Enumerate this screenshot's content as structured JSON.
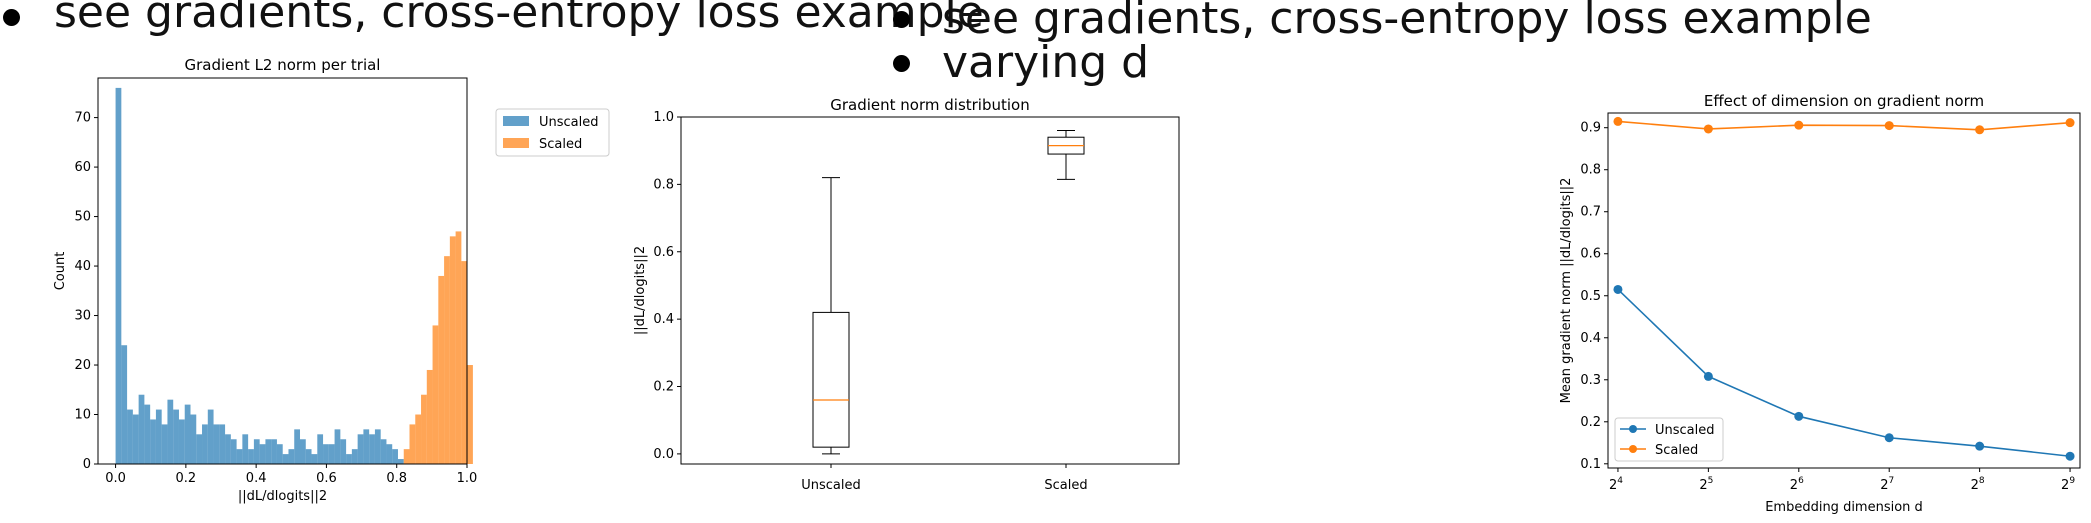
{
  "slide": {
    "left_bullets": [
      "see gradients, cross-entropy loss example"
    ],
    "right_bullets": [
      "see gradients, cross-entropy loss example",
      "varying d"
    ]
  },
  "colors": {
    "unscaled": "#1f77b4",
    "scaled": "#ff7f0e"
  },
  "chart_data": [
    {
      "type": "bar",
      "title": "Gradient L2 norm per trial",
      "xlabel": "||dL/dlogits||2",
      "ylabel": "Count",
      "xlim": [
        -0.05,
        1.0
      ],
      "ylim": [
        0,
        78
      ],
      "xticks": [
        "0.0",
        "0.2",
        "0.4",
        "0.6",
        "0.8",
        "1.0"
      ],
      "yticks": [
        "0",
        "10",
        "20",
        "30",
        "40",
        "50",
        "60",
        "70"
      ],
      "legend": "top-right",
      "bin_width": 0.0164,
      "series": [
        {
          "name": "Unscaled",
          "bin_start": 0.0,
          "values": [
            76,
            24,
            11,
            10,
            14,
            12,
            9,
            11,
            8,
            13,
            11,
            9,
            12,
            10,
            6,
            8,
            11,
            8,
            8,
            6,
            5,
            3,
            6,
            3,
            5,
            4,
            5,
            5,
            4,
            2,
            3,
            7,
            5,
            3,
            2,
            6,
            4,
            4,
            7,
            5,
            2,
            3,
            6,
            7,
            6,
            7,
            5,
            4,
            3,
            1
          ]
        },
        {
          "name": "Scaled",
          "bin_start": 0.82,
          "values": [
            3,
            8,
            10,
            14,
            19,
            28,
            38,
            42,
            46,
            47,
            41,
            20
          ]
        }
      ]
    },
    {
      "type": "box",
      "title": "Gradient norm distribution",
      "xlabel": "",
      "ylabel": "||dL/dlogits||2",
      "categories": [
        "Unscaled",
        "Scaled"
      ],
      "ylim": [
        -0.03,
        1.0
      ],
      "yticks": [
        "0.0",
        "0.2",
        "0.4",
        "0.6",
        "0.8",
        "1.0"
      ],
      "boxes": [
        {
          "name": "Unscaled",
          "whisker_low": 0.0,
          "q1": 0.02,
          "median": 0.16,
          "q3": 0.42,
          "whisker_high": 0.82
        },
        {
          "name": "Scaled",
          "whisker_low": 0.815,
          "q1": 0.89,
          "median": 0.915,
          "q3": 0.94,
          "whisker_high": 0.96
        }
      ]
    },
    {
      "type": "line",
      "title": "Effect of dimension on gradient norm",
      "xlabel": "Embedding dimension d",
      "ylabel": "Mean gradient norm ||dL/dlogits||2",
      "x": [
        16,
        32,
        64,
        128,
        256,
        512
      ],
      "xticks": [
        {
          "base": "2",
          "exp": "4"
        },
        {
          "base": "2",
          "exp": "5"
        },
        {
          "base": "2",
          "exp": "6"
        },
        {
          "base": "2",
          "exp": "7"
        },
        {
          "base": "2",
          "exp": "8"
        },
        {
          "base": "2",
          "exp": "9"
        }
      ],
      "xscale": "log2",
      "ylim": [
        0.09,
        0.935
      ],
      "yticks": [
        "0.1",
        "0.2",
        "0.3",
        "0.4",
        "0.5",
        "0.6",
        "0.7",
        "0.8",
        "0.9"
      ],
      "legend": "bottom-left",
      "series": [
        {
          "name": "Unscaled",
          "values": [
            0.515,
            0.308,
            0.213,
            0.162,
            0.142,
            0.118
          ]
        },
        {
          "name": "Scaled",
          "values": [
            0.915,
            0.897,
            0.906,
            0.905,
            0.895,
            0.912
          ]
        }
      ]
    }
  ]
}
